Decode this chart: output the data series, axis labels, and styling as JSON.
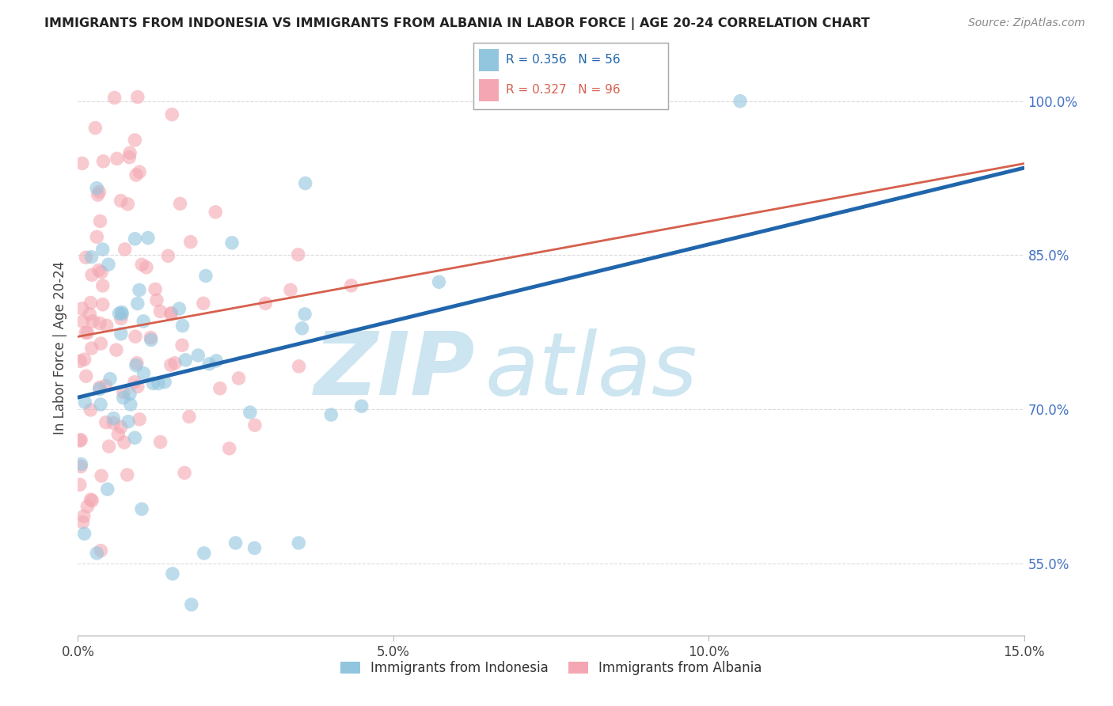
{
  "title": "IMMIGRANTS FROM INDONESIA VS IMMIGRANTS FROM ALBANIA IN LABOR FORCE | AGE 20-24 CORRELATION CHART",
  "source": "Source: ZipAtlas.com",
  "ylabel": "In Labor Force | Age 20-24",
  "xlim": [
    0.0,
    15.0
  ],
  "ylim": [
    48.0,
    104.0
  ],
  "xticks": [
    0.0,
    5.0,
    10.0,
    15.0
  ],
  "xticklabels": [
    "0.0%",
    "5.0%",
    "10.0%",
    "15.0%"
  ],
  "yticks": [
    55.0,
    70.0,
    85.0,
    100.0
  ],
  "yticklabels": [
    "55.0%",
    "70.0%",
    "85.0%",
    "100.0%"
  ],
  "legend_indonesia": "Immigrants from Indonesia",
  "legend_albania": "Immigrants from Albania",
  "R_indonesia": 0.356,
  "N_indonesia": 56,
  "R_albania": 0.327,
  "N_albania": 96,
  "color_indonesia": "#92c5de",
  "color_albania": "#f4a7b2",
  "color_indonesia_line": "#2166ac",
  "color_albania_line": "#d6604d",
  "watermark_zip": "ZIP",
  "watermark_atlas": "atlas",
  "watermark_color": "#cce5f0",
  "background_color": "#ffffff",
  "grid_color": "#cccccc",
  "title_color": "#222222",
  "source_color": "#888888",
  "ylabel_color": "#444444",
  "ytick_color": "#4472c4",
  "xtick_color": "#444444"
}
